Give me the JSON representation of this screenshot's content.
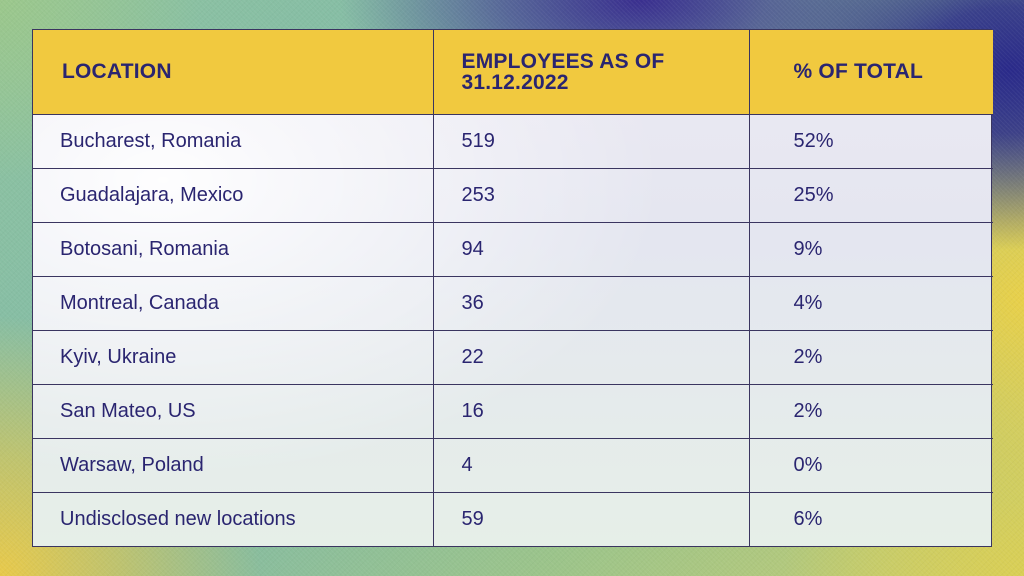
{
  "chart_data": {
    "type": "table",
    "columns": [
      "LOCATION",
      "EMPLOYEES AS OF 31.12.2022",
      "% OF TOTAL"
    ],
    "header_lines": {
      "employees_line1": "EMPLOYEES AS OF",
      "employees_line2": "31.12.2022"
    },
    "rows": [
      {
        "location": "Bucharest, Romania",
        "employees": "519",
        "percent": "52%"
      },
      {
        "location": "Guadalajara, Mexico",
        "employees": "253",
        "percent": "25%"
      },
      {
        "location": "Botosani, Romania",
        "employees": "94",
        "percent": "9%"
      },
      {
        "location": "Montreal, Canada",
        "employees": "36",
        "percent": "4%"
      },
      {
        "location": "Kyiv, Ukraine",
        "employees": "22",
        "percent": "2%"
      },
      {
        "location": "San Mateo, US",
        "employees": "16",
        "percent": "2%"
      },
      {
        "location": "Warsaw, Poland",
        "employees": "4",
        "percent": "0%"
      },
      {
        "location": "Undisclosed new locations",
        "employees": "59",
        "percent": "6%"
      }
    ]
  },
  "colors": {
    "header_bg": "#f1c93f",
    "text": "#2a2570",
    "border": "#3a3560"
  }
}
